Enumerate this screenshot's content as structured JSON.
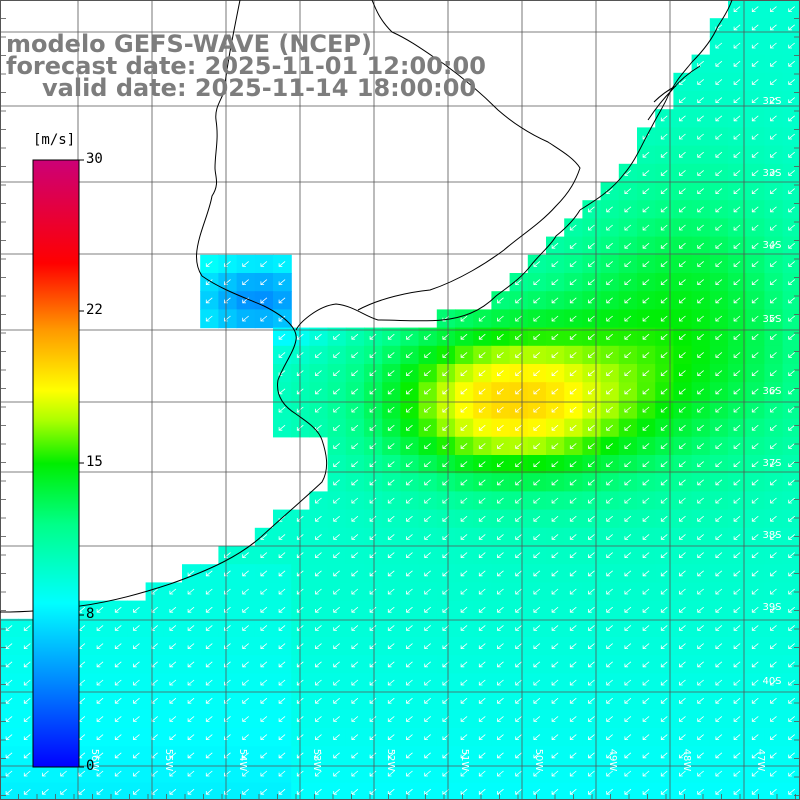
{
  "title": {
    "model": "modelo GEFS-WAVE (NCEP)",
    "forecast": "forecast date: 2025-11-01 12:00:00",
    "valid": "valid date: 2025-11-14 18:00:00"
  },
  "colorbar": {
    "unit": "[m/s]",
    "ticks": [
      "30",
      "22",
      "15",
      "8",
      "0"
    ],
    "tick_values": [
      30,
      22,
      15,
      8,
      0
    ],
    "colors": [
      "#0000ff",
      "#00aaff",
      "#00ffff",
      "#00ff66",
      "#00ee00",
      "#ffff00",
      "#ff9900",
      "#ff0000",
      "#cc0077"
    ]
  },
  "latitude_labels": [
    "32S",
    "33S",
    "34S",
    "35S",
    "36S",
    "37S",
    "38S",
    "39S",
    "40S"
  ],
  "longitude_labels": [
    "56W",
    "55W",
    "54W",
    "53W",
    "52W",
    "51W",
    "50W",
    "49W",
    "48W",
    "47W"
  ],
  "field": {
    "variable": "wind speed",
    "direction": "from northeast",
    "max_speed_ms": 17
  },
  "colors": {
    "land": "#ffffff",
    "grid": "#555555",
    "coastline": "#000000",
    "title": "#7d7d7d",
    "arrow": "#ffffff"
  }
}
